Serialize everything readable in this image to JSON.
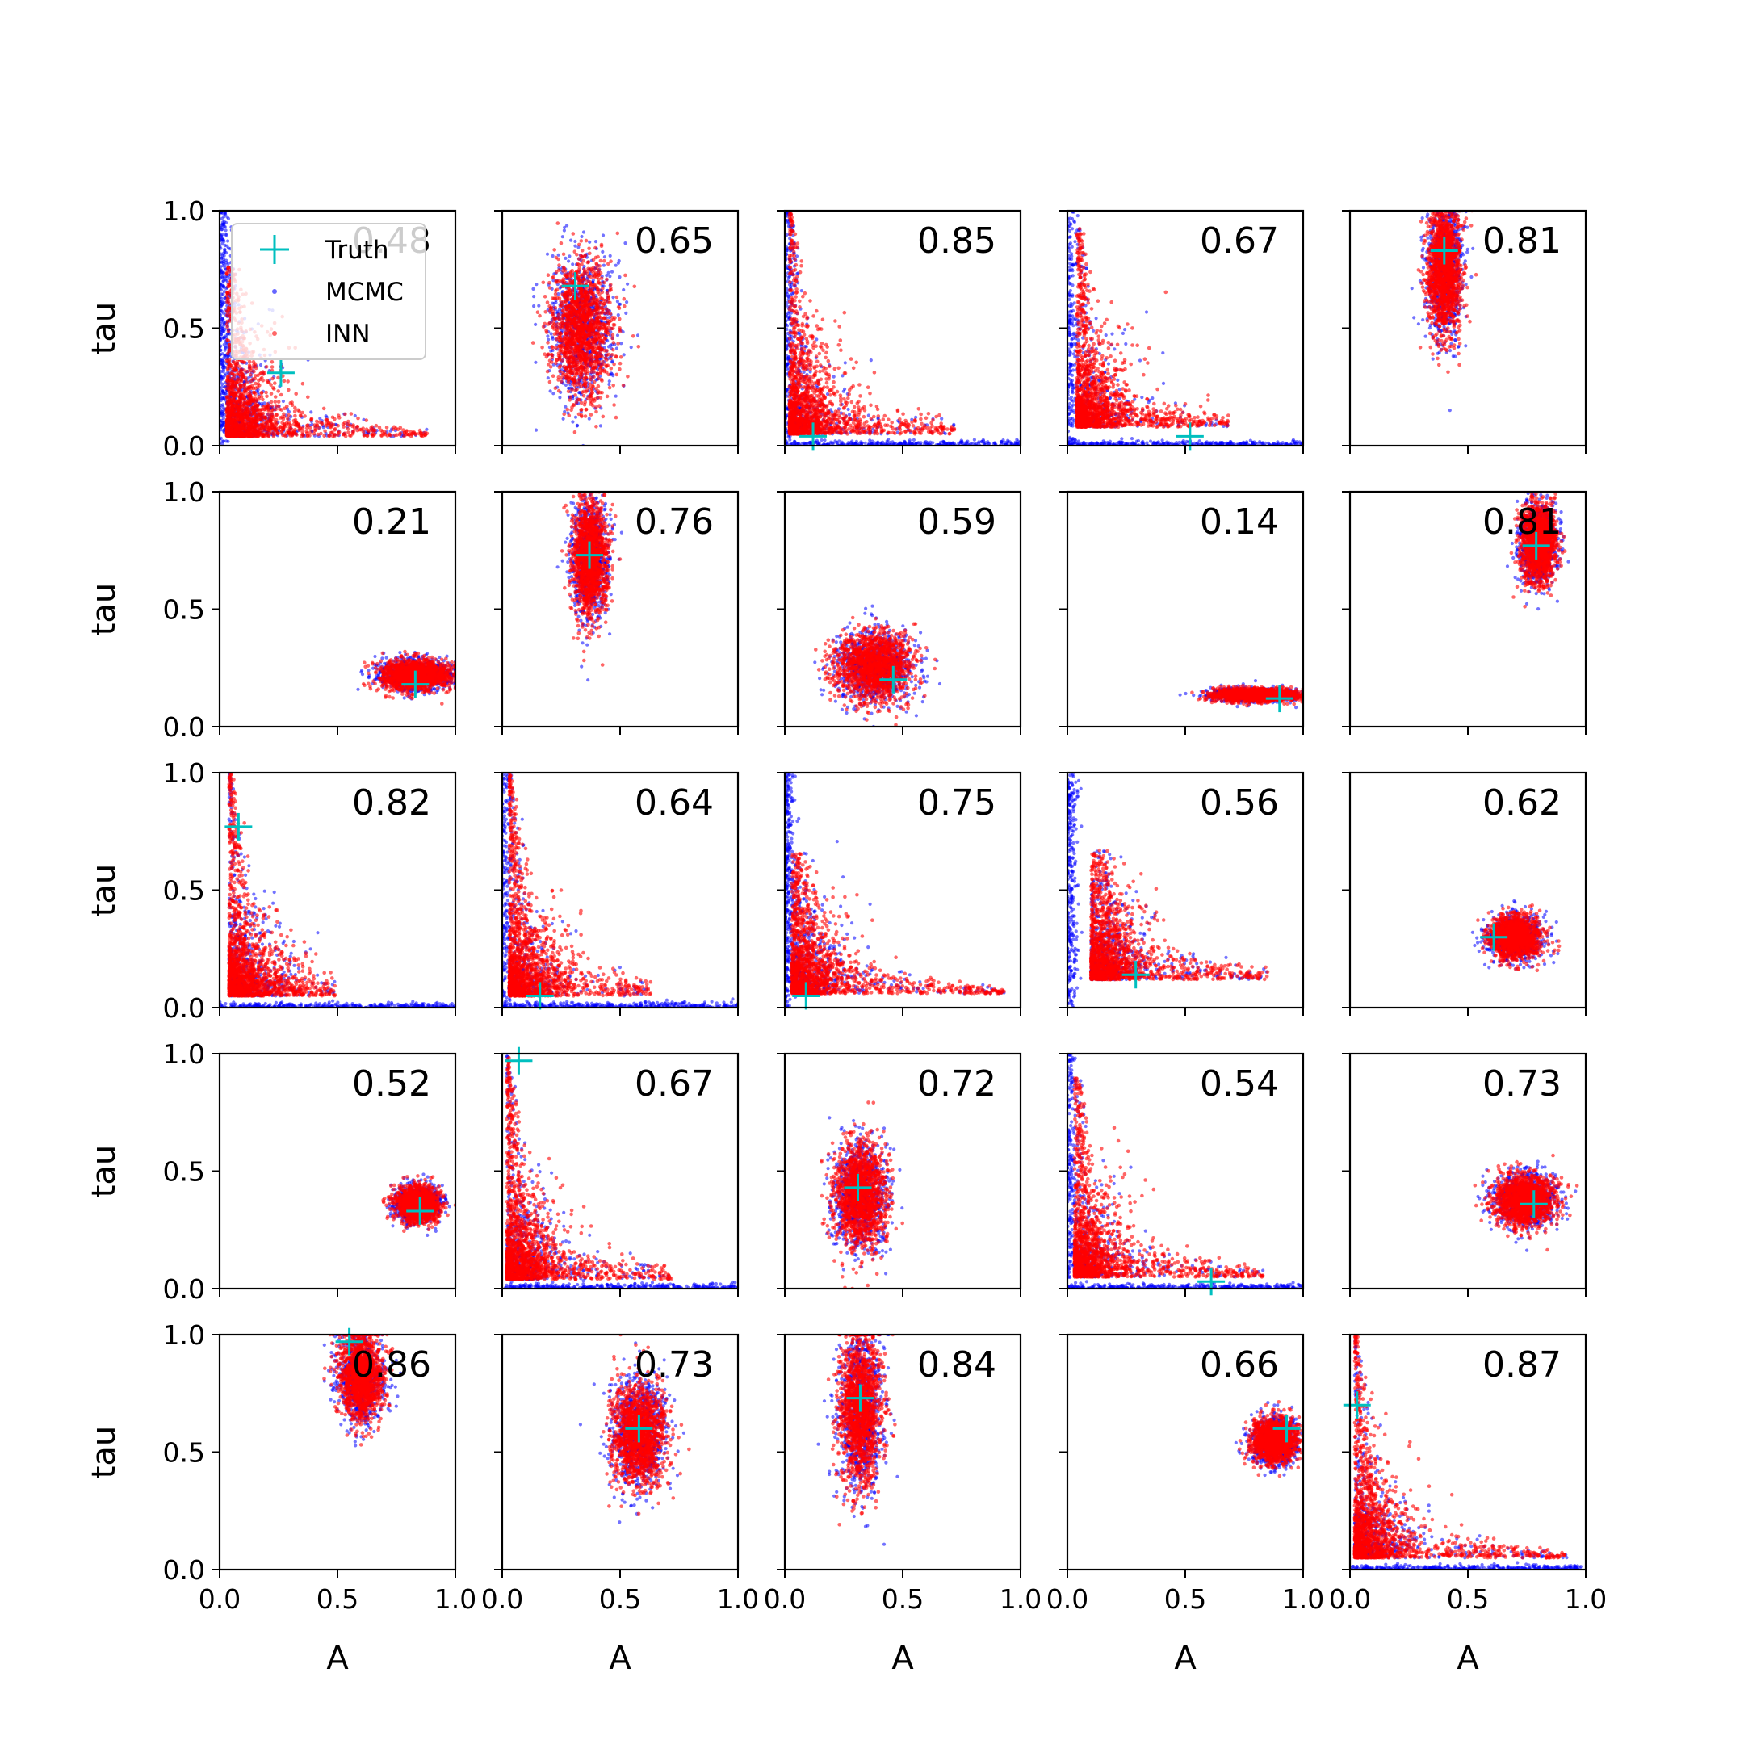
{
  "figure": {
    "legend": {
      "placement": "upper-left of first panel",
      "entries": [
        {
          "label": "Truth",
          "marker": "plus",
          "color": "#00bfbf"
        },
        {
          "label": "MCMC",
          "marker": "dot",
          "color": "#0000ff"
        },
        {
          "label": "INN",
          "marker": "dot",
          "color": "#ff0000"
        }
      ]
    }
  },
  "chart_data": {
    "type": "scatter",
    "layout": {
      "rows": 5,
      "cols": 5
    },
    "xlabel": "A",
    "ylabel": "tau",
    "xlim": [
      0,
      1
    ],
    "ylim": [
      0,
      1
    ],
    "xticks": [
      "0.0",
      "0.5",
      "1.0"
    ],
    "yticks": [
      "0.0",
      "0.5",
      "1.0"
    ],
    "grid": false,
    "series_colors": {
      "mcmc": "#0000ff",
      "inn": "#ff0000",
      "truth": "#00bfbf"
    },
    "panels": [
      {
        "score": "0.48",
        "truth": [
          0.26,
          0.31
        ],
        "shape": "L",
        "corner": [
          0.03,
          0.04
        ],
        "reach": [
          0.85,
          0.72
        ],
        "mcmc_tail": "y"
      },
      {
        "score": "0.65",
        "truth": [
          0.31,
          0.68
        ],
        "shape": "blob",
        "center": [
          0.34,
          0.5
        ],
        "spread": [
          0.07,
          0.16
        ]
      },
      {
        "score": "0.85",
        "truth": [
          0.12,
          0.04
        ],
        "shape": "L",
        "corner": [
          0.02,
          0.05
        ],
        "reach": [
          0.7,
          0.95
        ],
        "mcmc_tail": "both"
      },
      {
        "score": "0.67",
        "truth": [
          0.52,
          0.04
        ],
        "shape": "L",
        "corner": [
          0.04,
          0.08
        ],
        "reach": [
          0.65,
          0.85
        ],
        "mcmc_tail": "both"
      },
      {
        "score": "0.81",
        "truth": [
          0.4,
          0.83
        ],
        "shape": "blob",
        "center": [
          0.4,
          0.75
        ],
        "spread": [
          0.04,
          0.15
        ]
      },
      {
        "score": "0.21",
        "truth": [
          0.83,
          0.18
        ],
        "shape": "blob",
        "center": [
          0.83,
          0.22
        ],
        "spread": [
          0.08,
          0.035
        ]
      },
      {
        "score": "0.76",
        "truth": [
          0.37,
          0.73
        ],
        "shape": "blob",
        "center": [
          0.37,
          0.72
        ],
        "spread": [
          0.04,
          0.13
        ]
      },
      {
        "score": "0.59",
        "truth": [
          0.46,
          0.2
        ],
        "shape": "blob",
        "center": [
          0.38,
          0.26
        ],
        "spread": [
          0.09,
          0.08
        ]
      },
      {
        "score": "0.14",
        "truth": [
          0.9,
          0.12
        ],
        "shape": "blob",
        "center": [
          0.8,
          0.135
        ],
        "spread": [
          0.1,
          0.015
        ]
      },
      {
        "score": "0.81",
        "truth": [
          0.79,
          0.77
        ],
        "shape": "blob",
        "center": [
          0.8,
          0.78
        ],
        "spread": [
          0.04,
          0.09
        ]
      },
      {
        "score": "0.82",
        "truth": [
          0.08,
          0.77
        ],
        "shape": "L",
        "corner": [
          0.04,
          0.05
        ],
        "reach": [
          0.45,
          0.95
        ],
        "mcmc_tail": "x"
      },
      {
        "score": "0.64",
        "truth": [
          0.16,
          0.05
        ],
        "shape": "L",
        "corner": [
          0.03,
          0.05
        ],
        "reach": [
          0.6,
          0.95
        ],
        "mcmc_tail": "both"
      },
      {
        "score": "0.75",
        "truth": [
          0.09,
          0.05
        ],
        "shape": "L",
        "corner": [
          0.03,
          0.06
        ],
        "reach": [
          0.9,
          0.6
        ],
        "mcmc_tail": "y"
      },
      {
        "score": "0.56",
        "truth": [
          0.29,
          0.14
        ],
        "shape": "L",
        "corner": [
          0.1,
          0.12
        ],
        "reach": [
          0.75,
          0.55
        ],
        "mcmc_tail": "y"
      },
      {
        "score": "0.62",
        "truth": [
          0.61,
          0.3
        ],
        "shape": "blob",
        "center": [
          0.7,
          0.3
        ],
        "spread": [
          0.06,
          0.05
        ]
      },
      {
        "score": "0.52",
        "truth": [
          0.85,
          0.33
        ],
        "shape": "blob",
        "center": [
          0.84,
          0.36
        ],
        "spread": [
          0.05,
          0.04
        ]
      },
      {
        "score": "0.67",
        "truth": [
          0.07,
          0.97
        ],
        "shape": "L",
        "corner": [
          0.02,
          0.04
        ],
        "reach": [
          0.7,
          0.95
        ],
        "mcmc_tail": "x"
      },
      {
        "score": "0.72",
        "truth": [
          0.31,
          0.43
        ],
        "shape": "blob",
        "center": [
          0.32,
          0.4
        ],
        "spread": [
          0.06,
          0.12
        ]
      },
      {
        "score": "0.54",
        "truth": [
          0.61,
          0.03
        ],
        "shape": "L",
        "corner": [
          0.03,
          0.05
        ],
        "reach": [
          0.8,
          0.85
        ],
        "mcmc_tail": "both"
      },
      {
        "score": "0.73",
        "truth": [
          0.78,
          0.36
        ],
        "shape": "blob",
        "center": [
          0.74,
          0.38
        ],
        "spread": [
          0.07,
          0.06
        ]
      },
      {
        "score": "0.86",
        "truth": [
          0.55,
          0.97
        ],
        "shape": "blob",
        "center": [
          0.6,
          0.82
        ],
        "spread": [
          0.05,
          0.1
        ]
      },
      {
        "score": "0.73",
        "truth": [
          0.58,
          0.6
        ],
        "shape": "blob",
        "center": [
          0.58,
          0.58
        ],
        "spread": [
          0.06,
          0.12
        ]
      },
      {
        "score": "0.84",
        "truth": [
          0.32,
          0.73
        ],
        "shape": "blob",
        "center": [
          0.32,
          0.68
        ],
        "spread": [
          0.05,
          0.18
        ]
      },
      {
        "score": "0.66",
        "truth": [
          0.93,
          0.6
        ],
        "shape": "blob",
        "center": [
          0.88,
          0.55
        ],
        "spread": [
          0.05,
          0.05
        ]
      },
      {
        "score": "0.87",
        "truth": [
          0.03,
          0.7
        ],
        "shape": "L",
        "corner": [
          0.02,
          0.05
        ],
        "reach": [
          0.9,
          0.95
        ],
        "mcmc_tail": "x"
      }
    ]
  }
}
